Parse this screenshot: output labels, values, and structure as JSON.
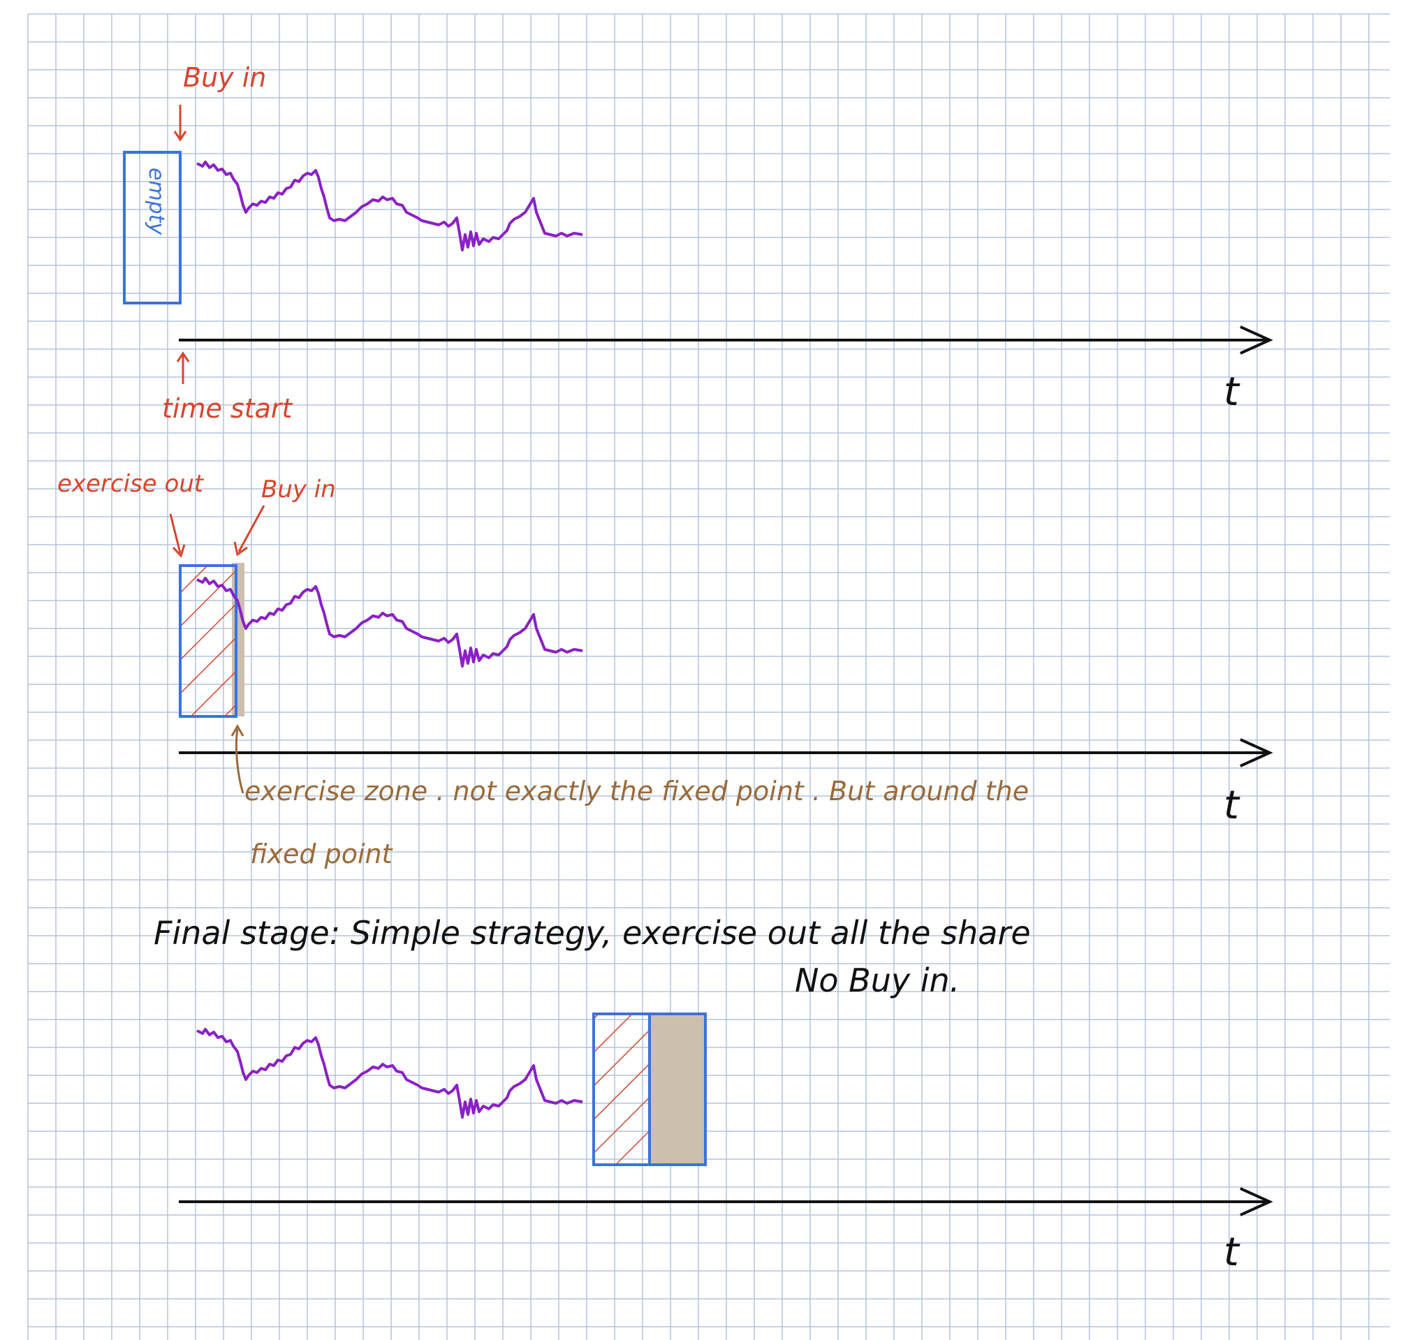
{
  "colors": {
    "grid": "#b3c3dd",
    "paper": "#ffffff",
    "axis": "#111111",
    "price": "#8a20c6",
    "red_ink": "#d9442c",
    "blue_ink": "#3a72e0",
    "brown_ink": "#9a6a3a",
    "black_ink": "#111111",
    "exercise_fill": "#cdbfae"
  },
  "panel1": {
    "buy_in": "Buy in",
    "empty": "empty",
    "time_start": "time start",
    "axis_label": "t"
  },
  "panel2": {
    "exercise_out": "exercise out",
    "buy_in": "Buy in",
    "exercise_zone_line1": "exercise zone . not exactly the fixed point . But around the",
    "exercise_zone_line2": "fixed point",
    "axis_label": "t"
  },
  "panel3": {
    "final_stage_line1": "Final stage: Simple strategy, exercise out all the share",
    "final_stage_line2": "No Buy in.",
    "axis_label": "t"
  }
}
